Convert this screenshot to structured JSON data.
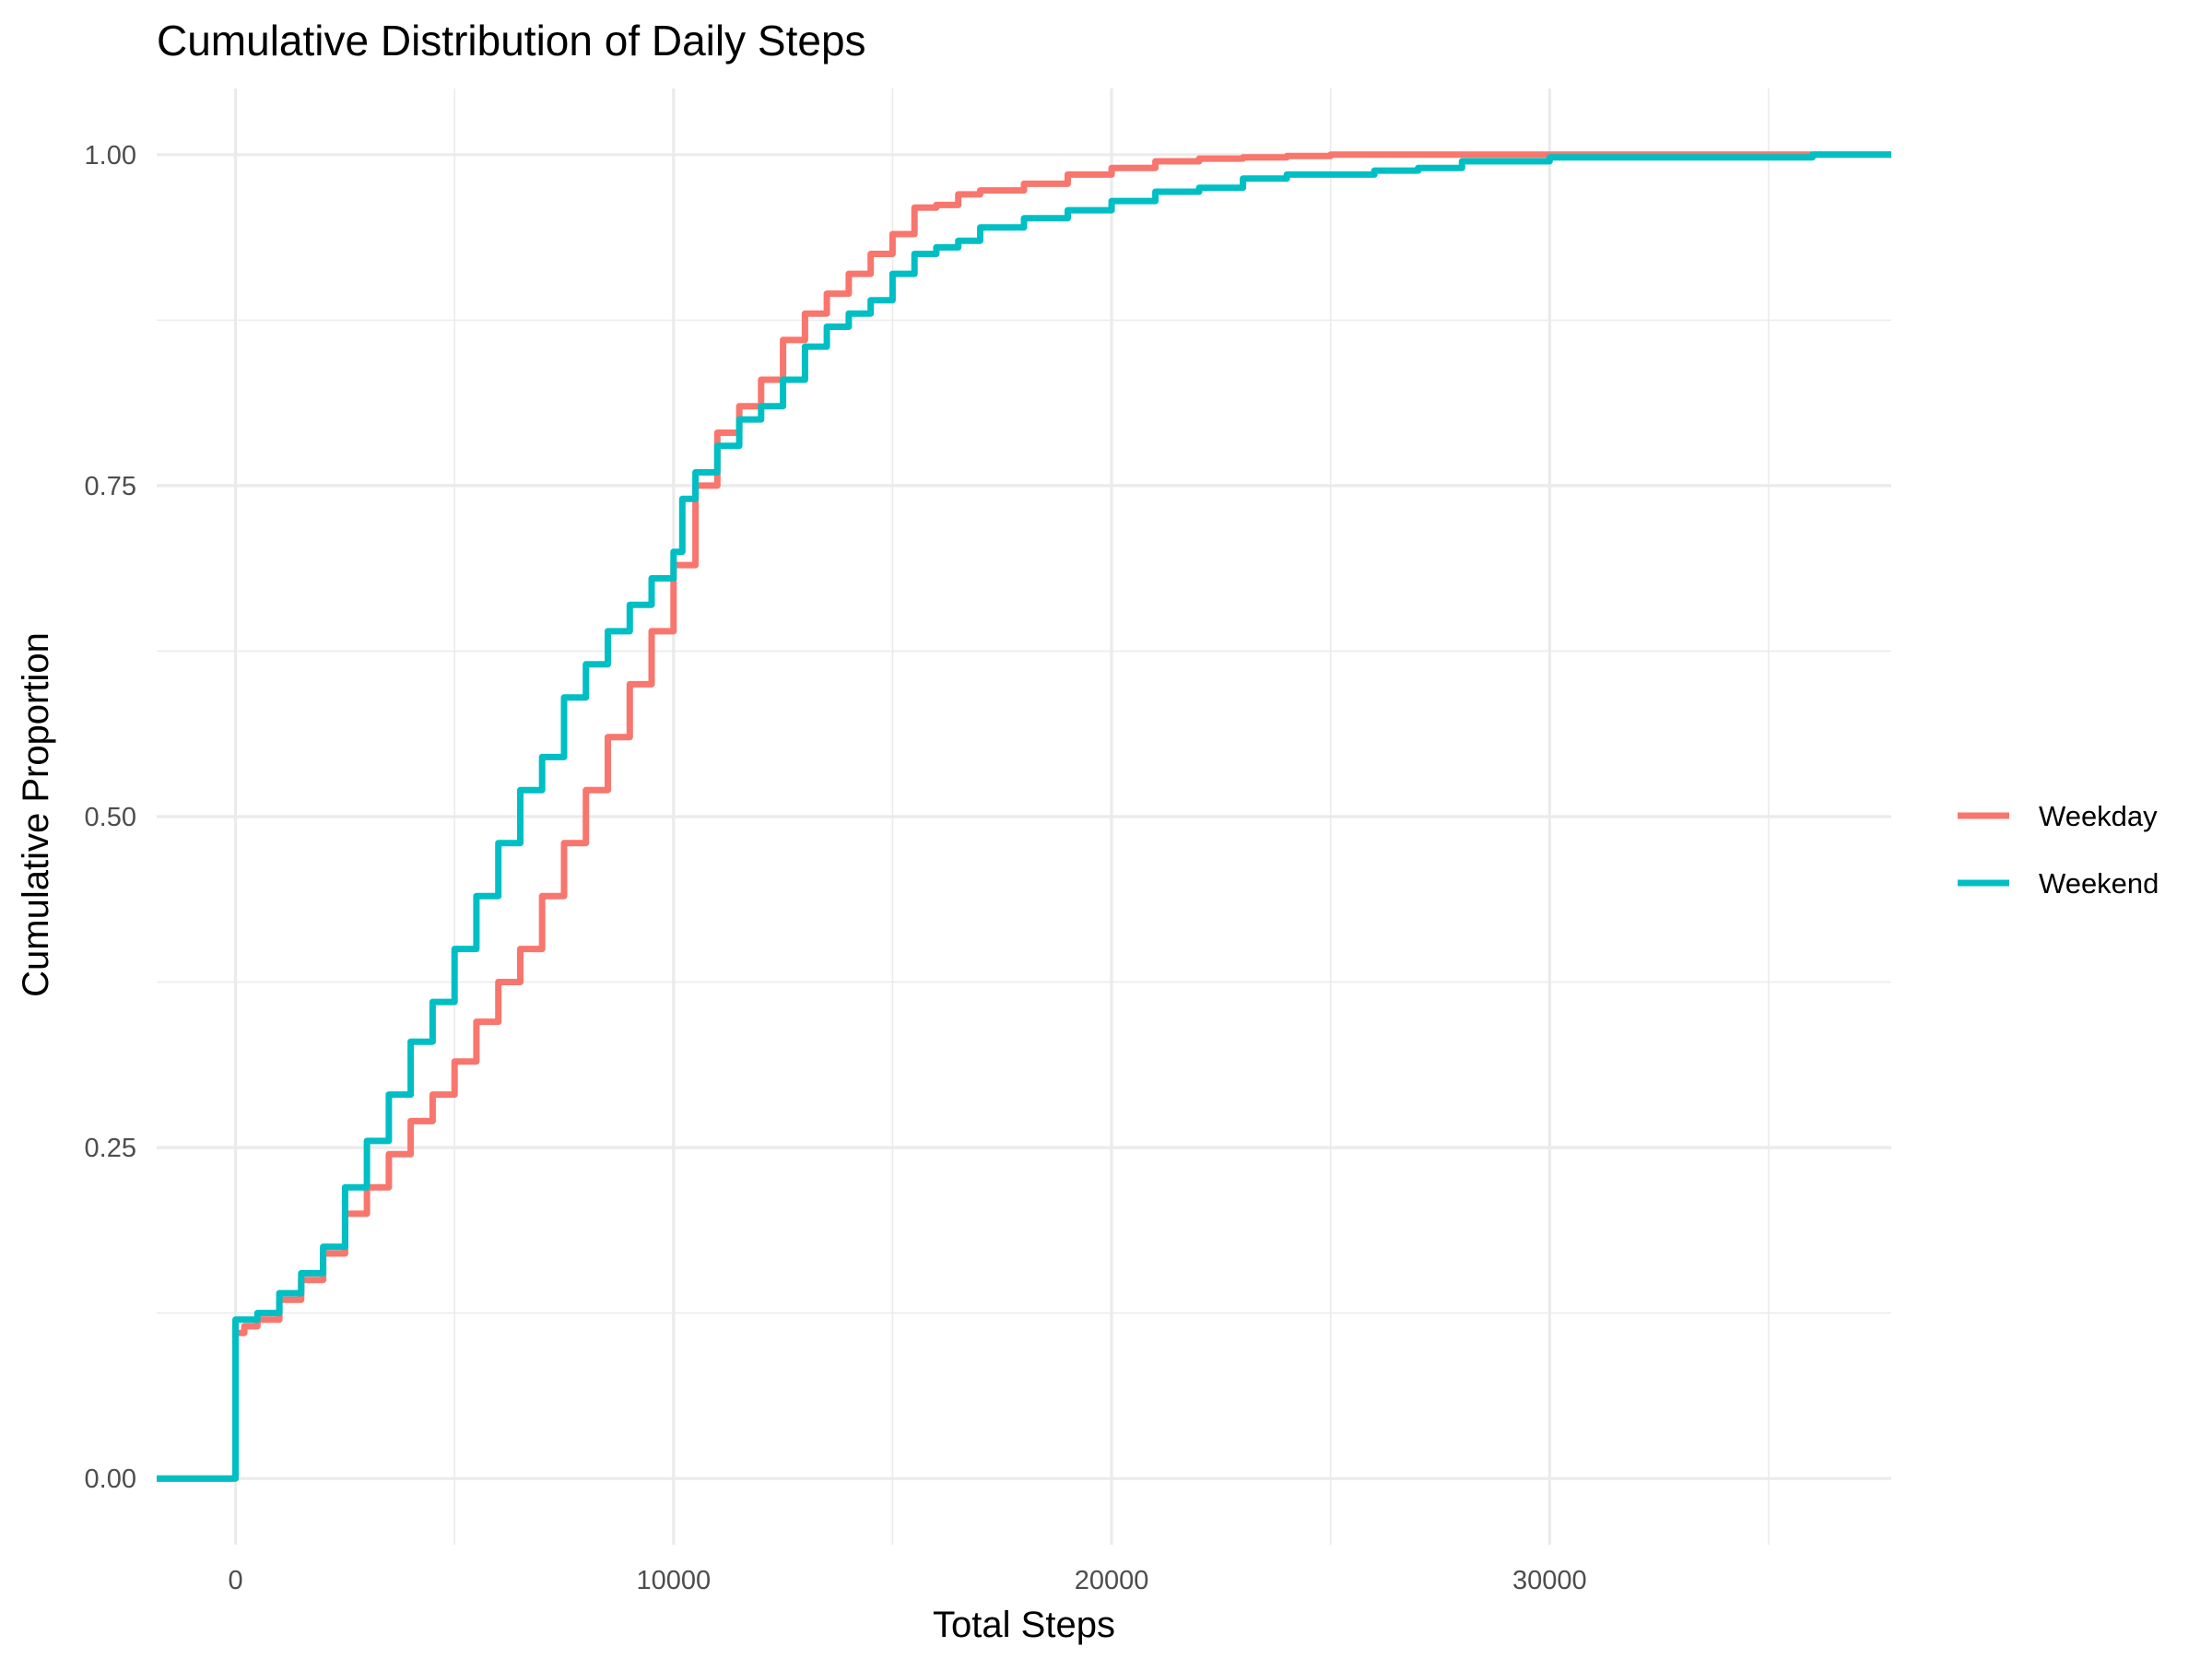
{
  "chart_data": {
    "type": "line",
    "title": "Cumulative Distribution of Daily Steps",
    "xlabel": "Total Steps",
    "ylabel": "Cumulative Proportion",
    "xlim": [
      -1800,
      37800
    ],
    "ylim": [
      -0.05,
      1.05
    ],
    "x_ticks": [
      0,
      10000,
      20000,
      30000
    ],
    "x_tick_labels": [
      "0",
      "10000",
      "20000",
      "30000"
    ],
    "x_minor_ticks": [
      5000,
      15000,
      25000,
      35000
    ],
    "y_ticks": [
      0,
      0.25,
      0.5,
      0.75,
      1.0
    ],
    "y_tick_labels": [
      "0.00",
      "0.25",
      "0.50",
      "0.75",
      "1.00"
    ],
    "y_minor_ticks": [
      0.125,
      0.375,
      0.625,
      0.875
    ],
    "grid": true,
    "legend_position": "right",
    "series": [
      {
        "name": "Weekday",
        "color": "#F8766D",
        "points": [
          [
            -1800,
            0
          ],
          [
            0,
            0
          ],
          [
            0,
            0.11
          ],
          [
            200,
            0.115
          ],
          [
            500,
            0.12
          ],
          [
            1000,
            0.135
          ],
          [
            1500,
            0.15
          ],
          [
            2000,
            0.17
          ],
          [
            2500,
            0.2
          ],
          [
            3000,
            0.22
          ],
          [
            3500,
            0.245
          ],
          [
            4000,
            0.27
          ],
          [
            4500,
            0.29
          ],
          [
            5000,
            0.315
          ],
          [
            5500,
            0.345
          ],
          [
            6000,
            0.375
          ],
          [
            6500,
            0.4
          ],
          [
            7000,
            0.44
          ],
          [
            7500,
            0.48
          ],
          [
            8000,
            0.52
          ],
          [
            8500,
            0.56
          ],
          [
            9000,
            0.6
          ],
          [
            9500,
            0.64
          ],
          [
            10000,
            0.69
          ],
          [
            10500,
            0.75
          ],
          [
            11000,
            0.79
          ],
          [
            11500,
            0.81
          ],
          [
            12000,
            0.83
          ],
          [
            12500,
            0.86
          ],
          [
            13000,
            0.88
          ],
          [
            13500,
            0.895
          ],
          [
            14000,
            0.91
          ],
          [
            14500,
            0.925
          ],
          [
            15000,
            0.94
          ],
          [
            15500,
            0.96
          ],
          [
            16000,
            0.962
          ],
          [
            16500,
            0.97
          ],
          [
            17000,
            0.973
          ],
          [
            18000,
            0.978
          ],
          [
            19000,
            0.985
          ],
          [
            20000,
            0.99
          ],
          [
            21000,
            0.995
          ],
          [
            22000,
            0.997
          ],
          [
            23000,
            0.998
          ],
          [
            24000,
            0.999
          ],
          [
            25000,
            1.0
          ],
          [
            37800,
            1.0
          ]
        ]
      },
      {
        "name": "Weekend",
        "color": "#00BFC4",
        "points": [
          [
            -1800,
            0
          ],
          [
            0,
            0
          ],
          [
            0,
            0.12
          ],
          [
            500,
            0.125
          ],
          [
            1000,
            0.14
          ],
          [
            1500,
            0.155
          ],
          [
            2000,
            0.175
          ],
          [
            2500,
            0.22
          ],
          [
            3000,
            0.255
          ],
          [
            3500,
            0.29
          ],
          [
            4000,
            0.33
          ],
          [
            4500,
            0.36
          ],
          [
            5000,
            0.4
          ],
          [
            5500,
            0.44
          ],
          [
            6000,
            0.48
          ],
          [
            6500,
            0.52
          ],
          [
            7000,
            0.545
          ],
          [
            7500,
            0.59
          ],
          [
            8000,
            0.615
          ],
          [
            8500,
            0.64
          ],
          [
            9000,
            0.66
          ],
          [
            9500,
            0.68
          ],
          [
            10000,
            0.7
          ],
          [
            10200,
            0.74
          ],
          [
            10500,
            0.76
          ],
          [
            11000,
            0.78
          ],
          [
            11500,
            0.8
          ],
          [
            12000,
            0.81
          ],
          [
            12500,
            0.83
          ],
          [
            13000,
            0.855
          ],
          [
            13500,
            0.87
          ],
          [
            14000,
            0.88
          ],
          [
            14500,
            0.89
          ],
          [
            15000,
            0.91
          ],
          [
            15500,
            0.925
          ],
          [
            16000,
            0.93
          ],
          [
            16500,
            0.935
          ],
          [
            17000,
            0.945
          ],
          [
            18000,
            0.952
          ],
          [
            19000,
            0.958
          ],
          [
            20000,
            0.965
          ],
          [
            21000,
            0.972
          ],
          [
            22000,
            0.975
          ],
          [
            23000,
            0.982
          ],
          [
            24000,
            0.985
          ],
          [
            26000,
            0.988
          ],
          [
            27000,
            0.99
          ],
          [
            28000,
            0.995
          ],
          [
            30000,
            0.998
          ],
          [
            35000,
            0.998
          ],
          [
            36000,
            1.0
          ],
          [
            37800,
            1.0
          ]
        ]
      }
    ]
  }
}
